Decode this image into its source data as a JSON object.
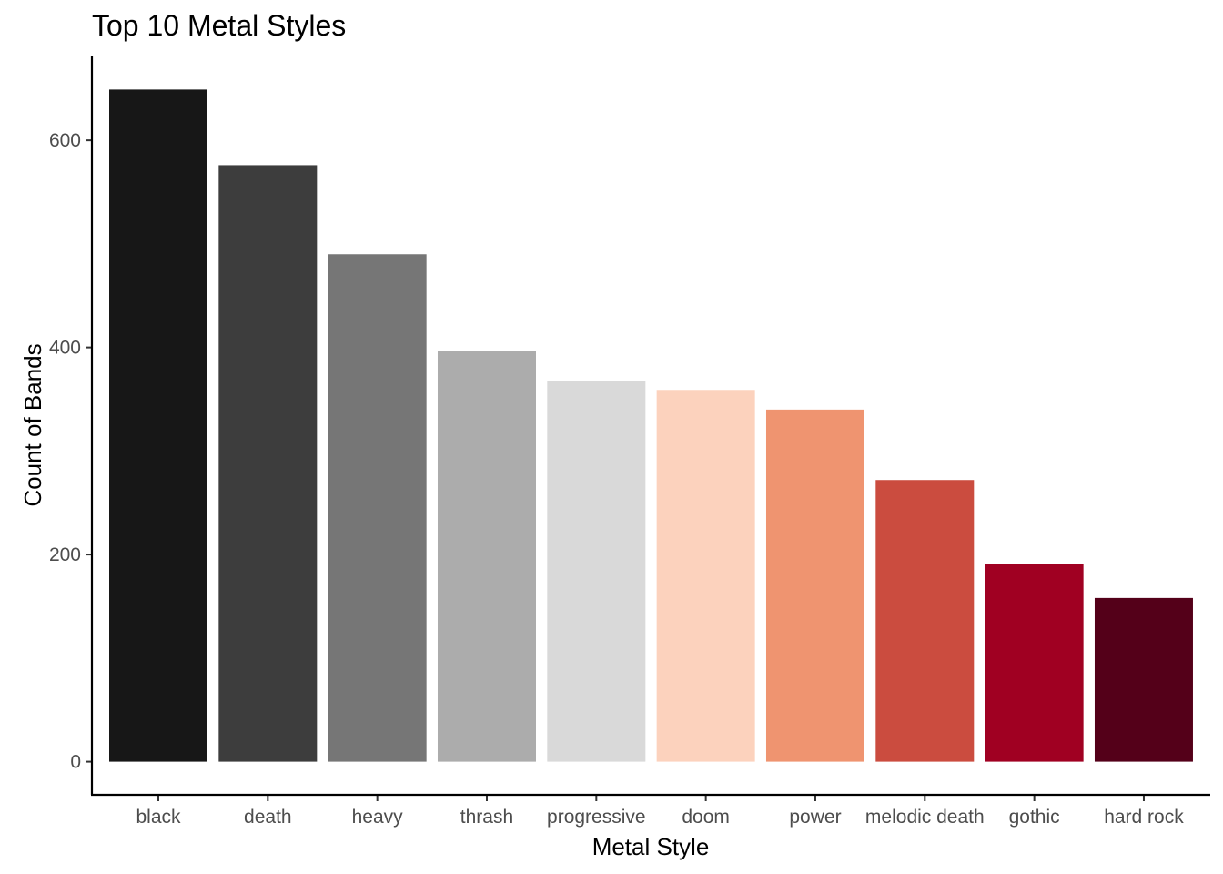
{
  "chart_data": {
    "type": "bar",
    "title": "Top 10 Metal Styles",
    "xlabel": "Metal Style",
    "ylabel": "Count of Bands",
    "categories": [
      "black",
      "death",
      "heavy",
      "thrash",
      "progressive",
      "doom",
      "power",
      "melodic death",
      "gothic",
      "hard rock"
    ],
    "values": [
      649,
      576,
      490,
      397,
      368,
      359,
      340,
      272,
      191,
      158
    ],
    "colors": [
      "#171717",
      "#3d3d3d",
      "#767676",
      "#acacac",
      "#d9d9d9",
      "#fcd2bd",
      "#ef9470",
      "#cb4c3f",
      "#a00022",
      "#540019"
    ],
    "yticks": [
      0,
      200,
      400,
      600
    ],
    "ylim": [
      -32,
      681
    ],
    "grid": false,
    "legend": "none"
  }
}
